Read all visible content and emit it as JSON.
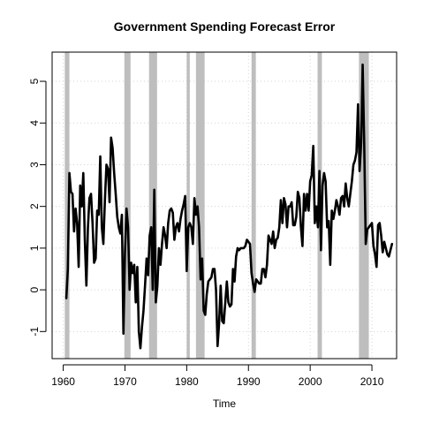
{
  "chart_data": {
    "type": "line",
    "title": "Government Spending Forecast Error",
    "xlabel": "Time",
    "ylabel": "",
    "xlim": [
      1958.2,
      2014.0
    ],
    "ylim": [
      -1.65,
      5.7
    ],
    "x_ticks": [
      1960,
      1970,
      1980,
      1990,
      2000,
      2010
    ],
    "y_ticks": [
      -1,
      0,
      1,
      2,
      3,
      4,
      5
    ],
    "grid": true,
    "shaded_periods": [
      [
        1960.25,
        1961.0
      ],
      [
        1969.9,
        1970.9
      ],
      [
        1973.9,
        1975.2
      ],
      [
        1980.0,
        1980.5
      ],
      [
        1981.5,
        1982.9
      ],
      [
        1990.5,
        1991.2
      ],
      [
        2001.2,
        2001.9
      ],
      [
        2007.9,
        2009.5
      ]
    ],
    "series": [
      {
        "values": [
          [
            1960.5,
            -0.2
          ],
          [
            1960.75,
            0.5
          ],
          [
            1961.0,
            2.8
          ],
          [
            1961.25,
            2.35
          ],
          [
            1961.5,
            2.3
          ],
          [
            1961.75,
            1.4
          ],
          [
            1962.0,
            1.95
          ],
          [
            1962.25,
            1.6
          ],
          [
            1962.5,
            0.55
          ],
          [
            1962.75,
            2.5
          ],
          [
            1963.0,
            2.0
          ],
          [
            1963.25,
            2.8
          ],
          [
            1963.5,
            1.2
          ],
          [
            1963.75,
            0.1
          ],
          [
            1964.0,
            1.5
          ],
          [
            1964.25,
            2.2
          ],
          [
            1964.5,
            2.3
          ],
          [
            1964.75,
            1.6
          ],
          [
            1965.0,
            0.65
          ],
          [
            1965.25,
            0.75
          ],
          [
            1965.5,
            1.9
          ],
          [
            1965.75,
            1.8
          ],
          [
            1966.0,
            3.2
          ],
          [
            1966.25,
            1.5
          ],
          [
            1966.5,
            1.1
          ],
          [
            1966.75,
            2.15
          ],
          [
            1967.0,
            3.0
          ],
          [
            1967.25,
            2.9
          ],
          [
            1967.5,
            2.1
          ],
          [
            1967.75,
            3.65
          ],
          [
            1968.0,
            3.4
          ],
          [
            1968.25,
            2.8
          ],
          [
            1968.5,
            2.3
          ],
          [
            1968.75,
            1.75
          ],
          [
            1969.0,
            1.5
          ],
          [
            1969.25,
            1.35
          ],
          [
            1969.5,
            1.8
          ],
          [
            1969.75,
            -1.05
          ],
          [
            1970.0,
            0.9
          ],
          [
            1970.25,
            1.95
          ],
          [
            1970.5,
            1.5
          ],
          [
            1970.75,
            0.0
          ],
          [
            1971.0,
            0.65
          ],
          [
            1971.25,
            0.4
          ],
          [
            1971.5,
            0.6
          ],
          [
            1971.75,
            -0.3
          ],
          [
            1972.0,
            0.55
          ],
          [
            1972.25,
            -1.0
          ],
          [
            1972.5,
            -1.4
          ],
          [
            1972.75,
            -0.9
          ],
          [
            1973.0,
            -0.5
          ],
          [
            1973.25,
            0.1
          ],
          [
            1973.5,
            0.75
          ],
          [
            1973.75,
            0.35
          ],
          [
            1974.0,
            1.3
          ],
          [
            1974.25,
            1.5
          ],
          [
            1974.5,
            0.0
          ],
          [
            1974.75,
            2.4
          ],
          [
            1975.0,
            -0.3
          ],
          [
            1975.25,
            0.1
          ],
          [
            1975.5,
            1.0
          ],
          [
            1975.75,
            0.6
          ],
          [
            1976.0,
            1.1
          ],
          [
            1976.25,
            1.5
          ],
          [
            1976.5,
            1.3
          ],
          [
            1976.75,
            1.0
          ],
          [
            1977.0,
            1.6
          ],
          [
            1977.25,
            1.9
          ],
          [
            1977.5,
            1.95
          ],
          [
            1977.75,
            1.85
          ],
          [
            1978.0,
            1.2
          ],
          [
            1978.25,
            1.5
          ],
          [
            1978.5,
            1.6
          ],
          [
            1978.75,
            1.4
          ],
          [
            1979.0,
            1.7
          ],
          [
            1979.25,
            1.9
          ],
          [
            1979.5,
            2.05
          ],
          [
            1979.75,
            2.25
          ],
          [
            1980.0,
            0.45
          ],
          [
            1980.25,
            1.5
          ],
          [
            1980.5,
            1.6
          ],
          [
            1980.75,
            1.5
          ],
          [
            1981.0,
            1.1
          ],
          [
            1981.25,
            2.2
          ],
          [
            1981.5,
            1.8
          ],
          [
            1981.75,
            2.0
          ],
          [
            1982.0,
            1.5
          ],
          [
            1982.25,
            0.25
          ],
          [
            1982.5,
            0.75
          ],
          [
            1982.75,
            -0.5
          ],
          [
            1983.0,
            -0.6
          ],
          [
            1983.25,
            -0.1
          ],
          [
            1983.5,
            0.2
          ],
          [
            1983.75,
            0.25
          ],
          [
            1984.0,
            0.3
          ],
          [
            1984.25,
            0.5
          ],
          [
            1984.5,
            0.5
          ],
          [
            1984.75,
            0.0
          ],
          [
            1985.0,
            -1.35
          ],
          [
            1985.25,
            -0.8
          ],
          [
            1985.5,
            0.1
          ],
          [
            1985.75,
            -0.75
          ],
          [
            1986.0,
            -0.8
          ],
          [
            1986.25,
            -0.3
          ],
          [
            1986.5,
            0.2
          ],
          [
            1986.75,
            -0.3
          ],
          [
            1987.0,
            -0.4
          ],
          [
            1987.25,
            -0.35
          ],
          [
            1987.5,
            0.5
          ],
          [
            1987.75,
            0.2
          ],
          [
            1988.0,
            0.8
          ],
          [
            1988.25,
            1.0
          ],
          [
            1988.5,
            0.95
          ],
          [
            1988.75,
            1.0
          ],
          [
            1989.0,
            1.0
          ],
          [
            1989.25,
            1.0
          ],
          [
            1989.5,
            1.05
          ],
          [
            1989.75,
            1.2
          ],
          [
            1990.0,
            1.15
          ],
          [
            1990.25,
            1.1
          ],
          [
            1990.5,
            0.4
          ],
          [
            1990.75,
            0.15
          ],
          [
            1991.0,
            -0.05
          ],
          [
            1991.25,
            0.25
          ],
          [
            1991.5,
            0.2
          ],
          [
            1991.75,
            0.15
          ],
          [
            1992.0,
            0.15
          ],
          [
            1992.25,
            0.5
          ],
          [
            1992.5,
            0.5
          ],
          [
            1992.75,
            0.3
          ],
          [
            1993.0,
            0.6
          ],
          [
            1993.25,
            1.3
          ],
          [
            1993.5,
            1.2
          ],
          [
            1993.75,
            1.1
          ],
          [
            1994.0,
            1.4
          ],
          [
            1994.25,
            1.0
          ],
          [
            1994.5,
            1.2
          ],
          [
            1994.75,
            1.25
          ],
          [
            1995.0,
            1.5
          ],
          [
            1995.25,
            2.15
          ],
          [
            1995.5,
            1.6
          ],
          [
            1995.75,
            2.2
          ],
          [
            1996.0,
            2.05
          ],
          [
            1996.25,
            1.5
          ],
          [
            1996.5,
            2.0
          ],
          [
            1996.75,
            2.0
          ],
          [
            1997.0,
            2.1
          ],
          [
            1997.25,
            1.55
          ],
          [
            1997.5,
            1.55
          ],
          [
            1997.75,
            1.75
          ],
          [
            1998.0,
            2.35
          ],
          [
            1998.25,
            2.2
          ],
          [
            1998.5,
            1.5
          ],
          [
            1998.75,
            1.05
          ],
          [
            1999.0,
            2.3
          ],
          [
            1999.25,
            1.9
          ],
          [
            1999.5,
            2.3
          ],
          [
            1999.75,
            1.9
          ],
          [
            2000.0,
            2.6
          ],
          [
            2000.25,
            2.75
          ],
          [
            2000.5,
            3.45
          ],
          [
            2000.75,
            1.6
          ],
          [
            2001.0,
            2.0
          ],
          [
            2001.25,
            1.5
          ],
          [
            2001.5,
            2.85
          ],
          [
            2001.75,
            0.95
          ],
          [
            2002.0,
            2.5
          ],
          [
            2002.25,
            2.8
          ],
          [
            2002.5,
            2.6
          ],
          [
            2002.75,
            1.5
          ],
          [
            2003.0,
            1.65
          ],
          [
            2003.25,
            0.6
          ],
          [
            2003.5,
            1.9
          ],
          [
            2003.75,
            1.7
          ],
          [
            2004.0,
            1.9
          ],
          [
            2004.25,
            2.15
          ],
          [
            2004.5,
            2.0
          ],
          [
            2004.75,
            1.8
          ],
          [
            2005.0,
            2.2
          ],
          [
            2005.25,
            2.25
          ],
          [
            2005.5,
            2.0
          ],
          [
            2005.75,
            2.55
          ],
          [
            2006.0,
            2.2
          ],
          [
            2006.25,
            2.0
          ],
          [
            2006.5,
            2.3
          ],
          [
            2006.75,
            2.6
          ],
          [
            2007.0,
            3.0
          ],
          [
            2007.25,
            3.1
          ],
          [
            2007.5,
            3.3
          ],
          [
            2007.75,
            4.45
          ],
          [
            2008.0,
            2.85
          ],
          [
            2008.25,
            3.5
          ],
          [
            2008.5,
            5.4
          ],
          [
            2008.75,
            3.5
          ],
          [
            2009.0,
            1.1
          ],
          [
            2009.25,
            1.45
          ],
          [
            2009.5,
            1.5
          ],
          [
            2009.75,
            1.55
          ],
          [
            2010.0,
            1.6
          ],
          [
            2010.25,
            1.05
          ],
          [
            2010.5,
            0.85
          ],
          [
            2010.75,
            0.55
          ],
          [
            2011.0,
            1.55
          ],
          [
            2011.25,
            1.6
          ],
          [
            2011.5,
            1.3
          ],
          [
            2011.75,
            0.9
          ],
          [
            2012.0,
            1.15
          ],
          [
            2012.25,
            1.0
          ],
          [
            2012.5,
            0.85
          ],
          [
            2012.75,
            0.8
          ],
          [
            2013.0,
            0.95
          ],
          [
            2013.25,
            1.1
          ]
        ]
      }
    ]
  }
}
